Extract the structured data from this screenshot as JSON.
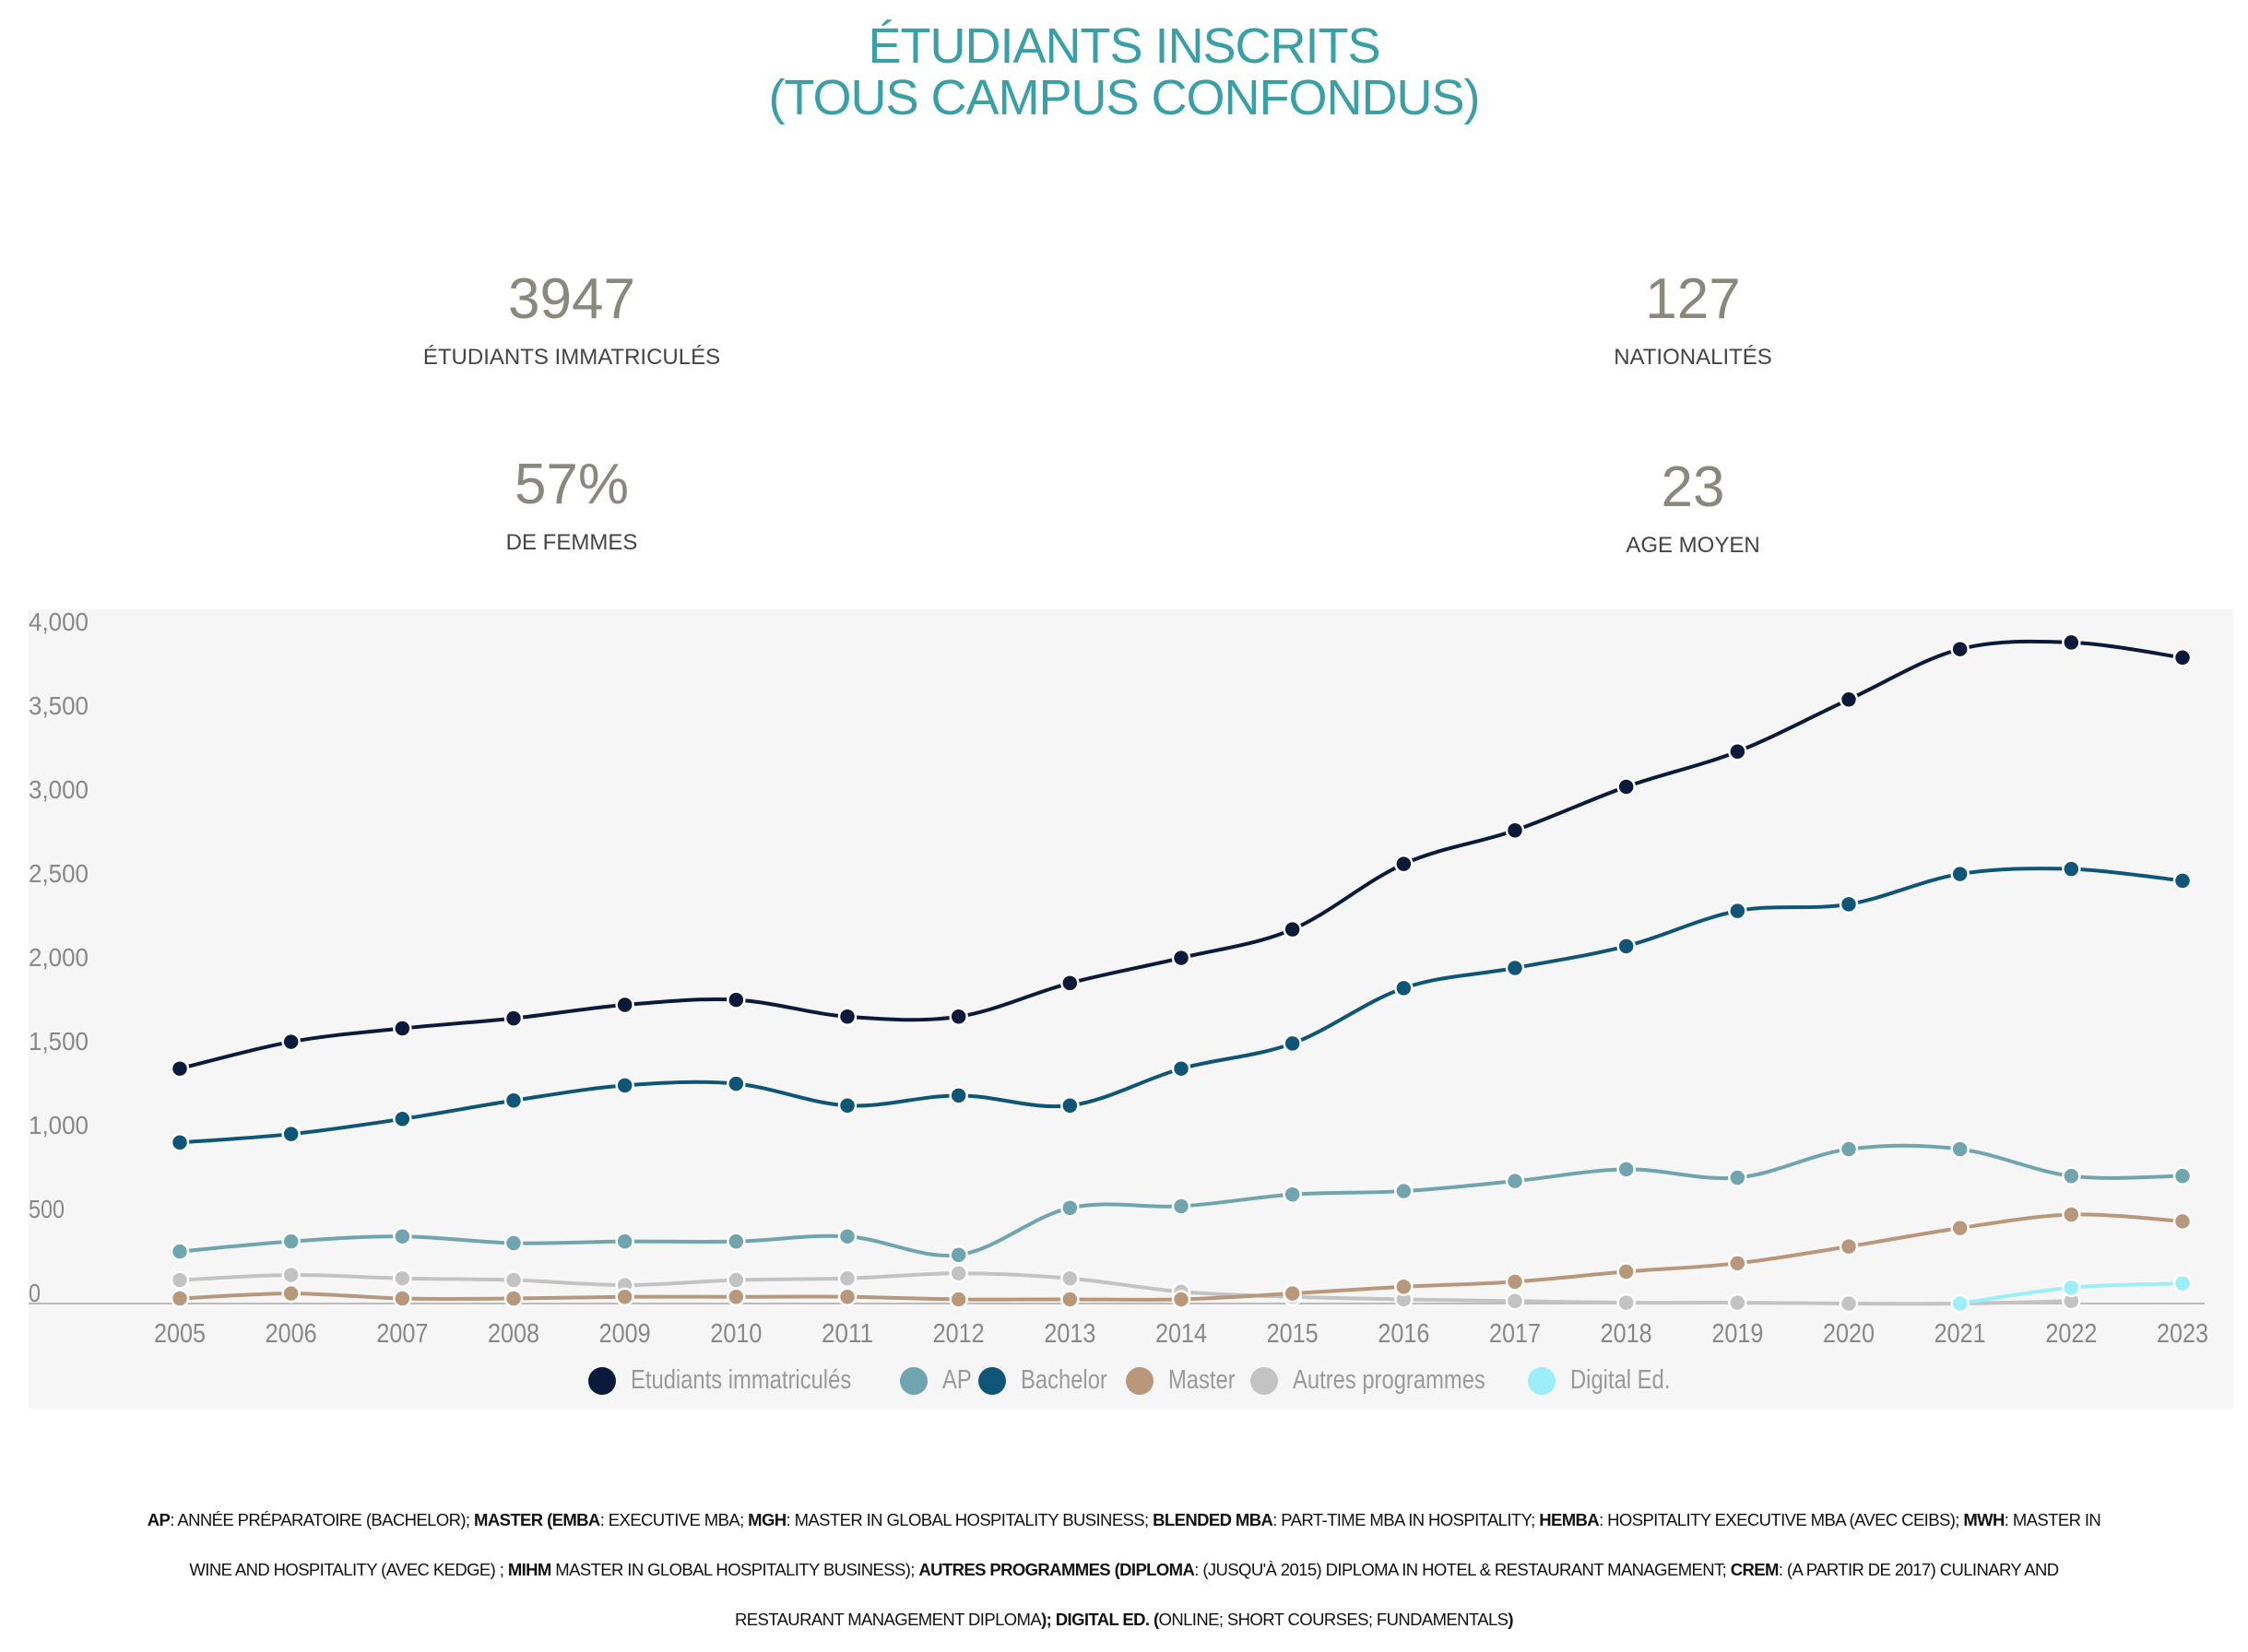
{
  "header": {
    "title_line1": "ÉTUDIANTS INSCRITS",
    "title_line2": "(TOUS CAMPUS CONFONDUS)"
  },
  "stats": [
    {
      "value": "3947",
      "label": "ÉTUDIANTS IMMATRICULÉS"
    },
    {
      "value": "127",
      "label": "NATIONALITÉS"
    },
    {
      "value": "57%",
      "label": "DE FEMMES"
    },
    {
      "value": "23",
      "label": "AGE MOYEN"
    }
  ],
  "chart_data": {
    "type": "line",
    "title": "",
    "xlabel": "",
    "ylabel": "",
    "ylim": [
      0,
      4000
    ],
    "yticks": [
      0,
      500,
      1000,
      1500,
      2000,
      2500,
      3000,
      3500,
      4000
    ],
    "ytick_labels": [
      "0",
      "500",
      "1,000",
      "1,500",
      "2,000",
      "2,500",
      "3,000",
      "3,500",
      "4,000"
    ],
    "grid": false,
    "legend_placement": "bottom",
    "smooth": true,
    "x": [
      "2005",
      "2006",
      "2007",
      "2008",
      "2009",
      "2010",
      "2011",
      "2012",
      "2013",
      "2014",
      "2015",
      "2016",
      "2017",
      "2018",
      "2019",
      "2020",
      "2021",
      "2022",
      "2023"
    ],
    "series": [
      {
        "name": "Etudiants immatriculés",
        "color": "#0b1a3a",
        "values": [
          1400,
          1560,
          1640,
          1700,
          1780,
          1810,
          1710,
          1710,
          1910,
          2060,
          2230,
          2620,
          2820,
          3080,
          3290,
          3600,
          3900,
          3940,
          3850
        ]
      },
      {
        "name": "AP",
        "color": "#70a4ae",
        "values": [
          310,
          370,
          400,
          360,
          370,
          370,
          400,
          290,
          570,
          580,
          650,
          670,
          730,
          800,
          750,
          920,
          920,
          760,
          760
        ]
      },
      {
        "name": "Bachelor",
        "color": "#0e5577",
        "values": [
          960,
          1010,
          1100,
          1210,
          1300,
          1310,
          1180,
          1240,
          1180,
          1400,
          1550,
          1880,
          2000,
          2130,
          2340,
          2380,
          2560,
          2590,
          2520
        ]
      },
      {
        "name": "Master",
        "color": "#b9977a",
        "values": [
          30,
          60,
          30,
          30,
          40,
          40,
          40,
          25,
          25,
          25,
          60,
          100,
          130,
          190,
          240,
          340,
          450,
          530,
          490
        ]
      },
      {
        "name": "Autres programmes",
        "color": "#c3c3c3",
        "values": [
          140,
          170,
          150,
          140,
          110,
          140,
          150,
          180,
          150,
          70,
          40,
          25,
          15,
          5,
          5,
          0,
          0,
          15,
          null
        ]
      },
      {
        "name": "Digital Ed.",
        "color": "#9ceefa",
        "values": [
          null,
          null,
          null,
          null,
          null,
          null,
          null,
          null,
          null,
          null,
          null,
          null,
          null,
          null,
          null,
          null,
          0,
          95,
          120
        ]
      }
    ]
  },
  "footnote": [
    [
      {
        "b": true,
        "t": "AP"
      },
      {
        "b": false,
        "t": ": ANNÉE PRÉPARATOIRE (BACHELOR); "
      },
      {
        "b": true,
        "t": "MASTER (EMBA"
      },
      {
        "b": false,
        "t": ": EXECUTIVE MBA; "
      },
      {
        "b": true,
        "t": "MGH"
      },
      {
        "b": false,
        "t": ": MASTER IN GLOBAL HOSPITALITY BUSINESS; "
      },
      {
        "b": true,
        "t": "BLENDED MBA"
      },
      {
        "b": false,
        "t": ": PART-TIME MBA IN HOSPITALITY; "
      },
      {
        "b": true,
        "t": "HEMBA"
      },
      {
        "b": false,
        "t": ": HOSPITALITY EXECUTIVE MBA (AVEC CEIBS); "
      },
      {
        "b": true,
        "t": "MWH"
      },
      {
        "b": false,
        "t": ": MASTER IN"
      }
    ],
    [
      {
        "b": false,
        "t": "WINE AND HOSPITALITY (AVEC KEDGE) ; "
      },
      {
        "b": true,
        "t": "MIHM"
      },
      {
        "b": false,
        "t": " MASTER IN GLOBAL HOSPITALITY BUSINESS);  "
      },
      {
        "b": true,
        "t": "AUTRES PROGRAMMES (DIPLOMA"
      },
      {
        "b": false,
        "t": ": (JUSQU'À 2015) DIPLOMA IN HOTEL & RESTAURANT MANAGEMENT; "
      },
      {
        "b": true,
        "t": "CREM"
      },
      {
        "b": false,
        "t": ": (A PARTIR DE 2017) CULINARY AND"
      }
    ],
    [
      {
        "b": false,
        "t": "RESTAURANT MANAGEMENT DIPLOMA"
      },
      {
        "b": true,
        "t": "); DIGITAL ED. ("
      },
      {
        "b": false,
        "t": "ONLINE; SHORT COURSES; FUNDAMENTALS"
      },
      {
        "b": true,
        "t": ")"
      }
    ]
  ]
}
